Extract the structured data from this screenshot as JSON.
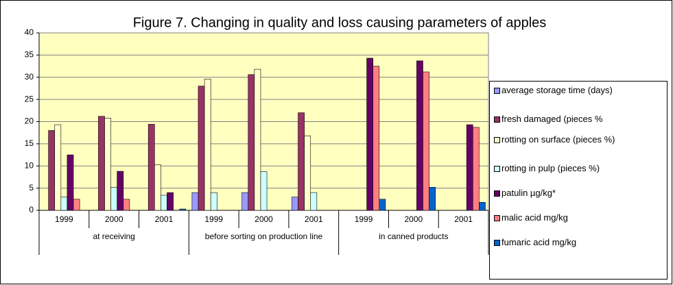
{
  "chart_data": {
    "type": "bar",
    "title": "Figure 7. Changing in quality and loss causing parameters of apples",
    "categories": [
      "1999",
      "2000",
      "2001",
      "1999",
      "2000",
      "2001",
      "1999",
      "2000",
      "2001"
    ],
    "category_groups": [
      "at receiving",
      "before sorting on production line",
      "in canned products"
    ],
    "series": [
      {
        "name": "average storage time (days)",
        "color": "#9999FF",
        "values": [
          null,
          null,
          null,
          4,
          4,
          3,
          null,
          null,
          null
        ]
      },
      {
        "name": "fresh damaged (pieces %",
        "color": "#993366",
        "values": [
          18,
          21.2,
          19.4,
          28,
          30.6,
          22,
          null,
          null,
          null
        ]
      },
      {
        "name": "rotting on surface (pieces %)",
        "color": "#FFFFCC",
        "values": [
          19.3,
          20.8,
          10.3,
          29.6,
          31.8,
          16.8,
          null,
          null,
          null
        ]
      },
      {
        "name": "rotting in pulp (pieces %)",
        "color": "#CCFFFF",
        "values": [
          3,
          5.2,
          3.4,
          4,
          8.7,
          4,
          null,
          null,
          null
        ]
      },
      {
        "name": "patulin µg/kg*",
        "color": "#660066",
        "values": [
          12.5,
          8.8,
          4,
          null,
          null,
          null,
          34.3,
          33.7,
          19.3
        ]
      },
      {
        "name": "malic acid mg/kg",
        "color": "#FF8080",
        "values": [
          2.5,
          2.5,
          null,
          null,
          null,
          null,
          32.5,
          31.2,
          18.7
        ]
      },
      {
        "name": "fumaric acid mg/kg",
        "color": "#0066CC",
        "values": [
          null,
          null,
          0.3,
          null,
          null,
          null,
          2.5,
          5.2,
          1.8
        ]
      }
    ],
    "ylim": [
      0,
      40
    ],
    "yticks": [
      0,
      5,
      10,
      15,
      20,
      25,
      30,
      35,
      40
    ],
    "grid": true,
    "legend": "right"
  }
}
